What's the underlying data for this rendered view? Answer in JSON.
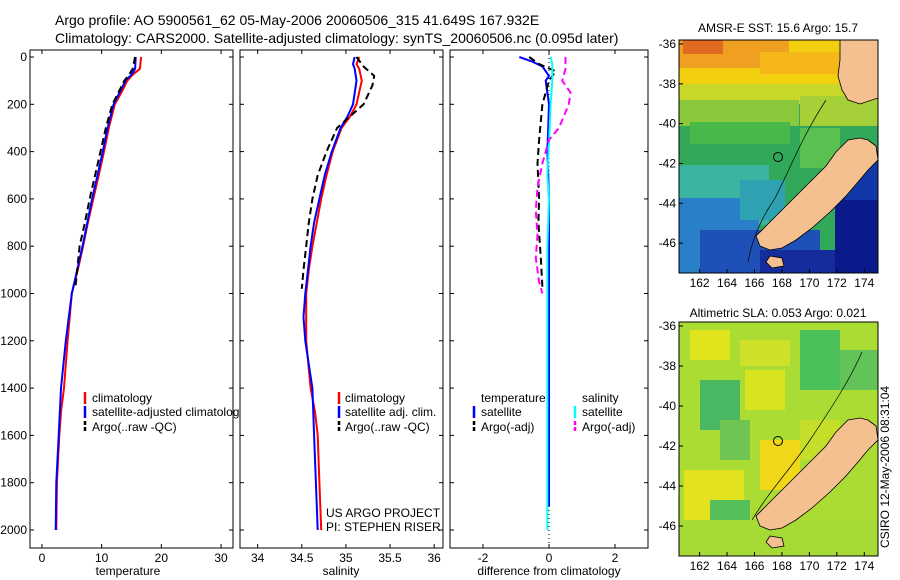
{
  "header": {
    "line1": "Argo profile: AO 5900561_62 05-May-2006 20060506_315 41.649S 167.932E",
    "line2": "Climatology: CARS2000. Satellite-adjusted climatology: synTS_20060506.nc (0.095d later)"
  },
  "chart_data": [
    {
      "type": "line",
      "id": "temperature",
      "xlabel": "temperature",
      "ylabel": "",
      "xlim": [
        -2,
        32
      ],
      "ylim": [
        2060,
        0
      ],
      "xticks": [
        0,
        10,
        20,
        30
      ],
      "yticks": [
        0,
        200,
        400,
        600,
        800,
        1000,
        1200,
        1400,
        1600,
        1800,
        2000
      ],
      "legend": [
        "climatology",
        "satellite-adjusted climatology",
        "Argo(..raw -QC)"
      ],
      "legend_placement": "lower-right",
      "series": [
        {
          "name": "climatology",
          "color": "#ff0000",
          "style": "solid",
          "x": [
            16.6,
            16.4,
            15.2,
            14.3,
            13.3,
            12.2,
            11.2,
            10.4,
            9.5,
            8.6,
            7.7,
            6.9,
            6.0,
            5.0,
            4.3,
            3.7,
            3.2,
            2.9,
            2.7,
            2.5,
            2.4
          ],
          "y": [
            0,
            50,
            75,
            100,
            150,
            200,
            300,
            400,
            500,
            600,
            700,
            800,
            900,
            1000,
            1200,
            1400,
            1500,
            1600,
            1700,
            1800,
            2000
          ]
        },
        {
          "name": "satellite-adjusted climatology",
          "color": "#0000ff",
          "style": "solid",
          "x": [
            15.7,
            15.6,
            15.0,
            14.0,
            13.0,
            12.0,
            11.0,
            10.2,
            9.3,
            8.4,
            7.6,
            6.8,
            5.9,
            5.0,
            4.0,
            3.2,
            2.8,
            2.6,
            2.4,
            2.3
          ],
          "y": [
            0,
            50,
            75,
            100,
            150,
            200,
            300,
            400,
            500,
            600,
            700,
            800,
            900,
            1000,
            1200,
            1400,
            1600,
            1700,
            1800,
            2000
          ]
        },
        {
          "name": "Argo(..raw -QC)",
          "color": "#000000",
          "style": "dashed",
          "x": [
            15.6,
            15.2,
            14.6,
            13.8,
            12.8,
            11.8,
            10.7,
            9.8,
            8.9,
            8.0,
            7.2,
            6.3,
            5.6
          ],
          "y": [
            0,
            50,
            75,
            100,
            150,
            200,
            300,
            400,
            500,
            600,
            700,
            800,
            975
          ]
        }
      ]
    },
    {
      "type": "line",
      "id": "salinity",
      "xlabel": "salinity",
      "ylabel": "",
      "xlim": [
        33.8,
        36.1
      ],
      "ylim": [
        2060,
        0
      ],
      "xticks": [
        34,
        34.5,
        35,
        35.5,
        36
      ],
      "legend": [
        "climatology",
        "satellite adj. clim.",
        "Argo(..raw -QC)"
      ],
      "legend_placement": "lower-right",
      "series": [
        {
          "name": "climatology",
          "color": "#ff0000",
          "style": "solid",
          "x": [
            35.15,
            35.12,
            35.15,
            35.18,
            35.12,
            35.05,
            34.95,
            34.85,
            34.78,
            34.72,
            34.67,
            34.62,
            34.58,
            34.55,
            34.55,
            34.6,
            34.65,
            34.68,
            34.7,
            34.72
          ],
          "y": [
            0,
            30,
            50,
            100,
            200,
            250,
            300,
            400,
            500,
            600,
            700,
            800,
            900,
            1000,
            1200,
            1400,
            1500,
            1600,
            1800,
            2000
          ]
        },
        {
          "name": "satellite adj. clim.",
          "color": "#0000ff",
          "style": "solid",
          "x": [
            35.1,
            35.08,
            35.1,
            35.12,
            35.08,
            35.02,
            34.94,
            34.84,
            34.76,
            34.7,
            34.64,
            34.6,
            34.57,
            34.54,
            34.52,
            34.54,
            34.58,
            34.62,
            34.64,
            34.66,
            34.68
          ],
          "y": [
            0,
            30,
            50,
            100,
            200,
            250,
            300,
            400,
            500,
            600,
            700,
            800,
            900,
            1000,
            1100,
            1200,
            1300,
            1400,
            1600,
            1800,
            2000
          ]
        },
        {
          "name": "Argo(..raw -QC)",
          "color": "#000000",
          "style": "dashed",
          "x": [
            35.12,
            35.2,
            35.32,
            35.3,
            35.2,
            35.05,
            34.9,
            34.78,
            34.68,
            34.62,
            34.58,
            34.55,
            34.52,
            34.5
          ],
          "y": [
            0,
            40,
            80,
            120,
            200,
            250,
            300,
            400,
            500,
            600,
            700,
            800,
            900,
            980
          ]
        }
      ]
    },
    {
      "type": "line",
      "id": "difference",
      "xlabel": "difference from climatology",
      "ylabel": "",
      "xlim": [
        -3,
        3
      ],
      "ylim": [
        2060,
        0
      ],
      "xticks": [
        -2,
        0,
        2
      ],
      "legend_groups": [
        {
          "title": "temperature",
          "entries": [
            "satellite",
            "Argo(-adj)"
          ]
        },
        {
          "title": "salinity",
          "entries": [
            "satellite",
            "Argo(-adj)"
          ]
        }
      ],
      "legend_placement": "lower",
      "series": [
        {
          "name": "temperature satellite",
          "color": "#0000ff",
          "style": "solid",
          "x": [
            -0.9,
            -0.5,
            -0.2,
            -0.1,
            0.0,
            -0.1,
            0.0,
            -0.05,
            0.0,
            0.0,
            0.0,
            0.0,
            0.0
          ],
          "y": [
            0,
            20,
            40,
            60,
            80,
            100,
            200,
            400,
            600,
            800,
            1000,
            1500,
            1900
          ]
        },
        {
          "name": "temperature Argo(-adj)",
          "color": "#000000",
          "style": "dashed",
          "x": [
            -0.6,
            -0.3,
            0.2,
            0.0,
            -0.2,
            -0.3,
            -0.35,
            -0.3,
            -0.32,
            -0.25,
            -0.2
          ],
          "y": [
            0,
            30,
            60,
            100,
            200,
            350,
            450,
            600,
            700,
            850,
            975
          ]
        },
        {
          "name": "salinity satellite",
          "color": "#00ffff",
          "style": "solid",
          "x": [
            0.05,
            0.1,
            0.1,
            0.05,
            0.02,
            -0.05,
            0.0,
            -0.05,
            -0.05,
            -0.05,
            -0.05,
            -0.05
          ],
          "y": [
            0,
            30,
            100,
            200,
            300,
            500,
            600,
            800,
            1000,
            1400,
            1800,
            2000
          ]
        },
        {
          "name": "salinity Argo(-adj)",
          "color": "#ff00ff",
          "style": "dashed",
          "x": [
            0.5,
            0.5,
            0.4,
            0.65,
            0.6,
            0.3,
            0.0,
            -0.2,
            -0.35,
            -0.4,
            -0.35,
            -0.4,
            -0.3,
            -0.2
          ],
          "y": [
            0,
            50,
            100,
            150,
            200,
            300,
            350,
            450,
            550,
            650,
            750,
            850,
            950,
            1000
          ]
        }
      ]
    },
    {
      "type": "heatmap",
      "id": "sst_map",
      "title": "AMSR-E SST: 15.6 Argo: 15.7",
      "xlim": [
        160.5,
        175
      ],
      "ylim": [
        -47.5,
        -35.8
      ],
      "xticks": [
        162,
        164,
        166,
        168,
        170,
        172,
        174
      ],
      "yticks": [
        -36,
        -38,
        -40,
        -42,
        -44,
        -46
      ],
      "float_position": [
        167.932,
        -41.649
      ]
    },
    {
      "type": "heatmap",
      "id": "sla_map",
      "title": "Altimetric SLA: 0.053 Argo: 0.021",
      "xlim": [
        160.5,
        175
      ],
      "ylim": [
        -47.5,
        -35.8
      ],
      "xticks": [
        162,
        164,
        166,
        168,
        170,
        172,
        174
      ],
      "yticks": [
        -36,
        -38,
        -40,
        -42,
        -44,
        -46
      ],
      "float_position": [
        167.932,
        -41.649
      ]
    }
  ],
  "annotations": {
    "project_line1": "US ARGO PROJECT",
    "project_line2": "PI: STEPHEN RISER",
    "stamp": "CSIRO 12-May-2006 08:31:04"
  },
  "colors": {
    "land": "#f4c090",
    "red": "#ff0000",
    "blue": "#0000ff",
    "cyan": "#00ffff",
    "magenta": "#ff00ff",
    "black": "#000000"
  }
}
